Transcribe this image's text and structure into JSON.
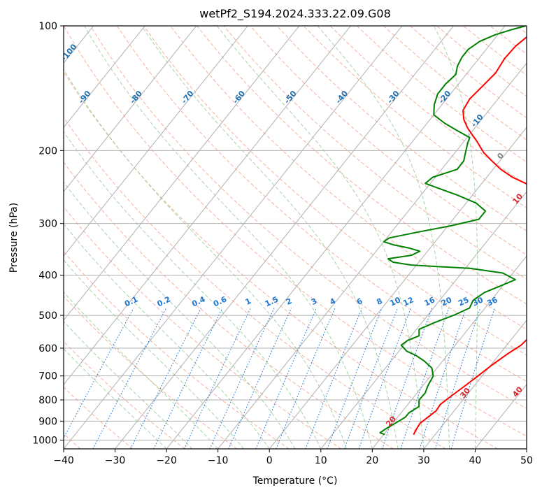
{
  "chart_data": {
    "type": "line",
    "subtype": "skew-T log-P diagram",
    "title": "wetPf2_S194.2024.333.22.09.G08",
    "xlabel": "Temperature (°C)",
    "ylabel": "Pressure (hPa)",
    "xlim": [
      -40,
      50
    ],
    "ylim": [
      1050,
      100
    ],
    "y_scale": "log",
    "x_ticks": [
      -40,
      -30,
      -20,
      -10,
      0,
      10,
      20,
      30,
      40,
      50
    ],
    "y_ticks": [
      100,
      200,
      300,
      400,
      500,
      600,
      700,
      800,
      900,
      1000
    ],
    "grid": true,
    "series": [
      {
        "role": "temperature",
        "color": "#ff0000",
        "points": [
          [
            25.8,
            970
          ],
          [
            25.5,
            940
          ],
          [
            25.3,
            910
          ],
          [
            25.9,
            880
          ],
          [
            26.5,
            850
          ],
          [
            26.3,
            820
          ],
          [
            27.2,
            780
          ],
          [
            28.2,
            740
          ],
          [
            29.2,
            700
          ],
          [
            30.2,
            660
          ],
          [
            31.5,
            620
          ],
          [
            32.8,
            590
          ],
          [
            33.2,
            560
          ],
          [
            33.6,
            530
          ],
          [
            33.0,
            500
          ],
          [
            33.0,
            470
          ],
          [
            33.3,
            440
          ],
          [
            34.0,
            410
          ],
          [
            35.6,
            385
          ],
          [
            36.2,
            370
          ],
          [
            35.5,
            355
          ],
          [
            34.5,
            335
          ],
          [
            32.6,
            315
          ],
          [
            30.0,
            300
          ],
          [
            26.0,
            285
          ],
          [
            21.0,
            272
          ],
          [
            16.5,
            260
          ],
          [
            12.5,
            250
          ],
          [
            8.5,
            240
          ],
          [
            5.0,
            232
          ],
          [
            1.5,
            222
          ],
          [
            -1.5,
            212
          ],
          [
            -4.5,
            202
          ],
          [
            -7.5,
            190
          ],
          [
            -9.5,
            183
          ],
          [
            -11.5,
            176
          ],
          [
            -13.5,
            168
          ],
          [
            -15.0,
            160
          ],
          [
            -15.5,
            150
          ],
          [
            -15.0,
            140
          ],
          [
            -14.5,
            130
          ],
          [
            -15.0,
            120
          ],
          [
            -14.8,
            112
          ],
          [
            -14.0,
            106
          ],
          [
            -13.0,
            100
          ]
        ]
      },
      {
        "role": "dewpoint",
        "color": "#008000",
        "points": [
          [
            20.2,
            970
          ],
          [
            19.0,
            960
          ],
          [
            19.5,
            940
          ],
          [
            20.5,
            910
          ],
          [
            21.5,
            880
          ],
          [
            21.5,
            860
          ],
          [
            22.5,
            830
          ],
          [
            21.5,
            800
          ],
          [
            21.6,
            770
          ],
          [
            21.0,
            740
          ],
          [
            20.5,
            700
          ],
          [
            19.0,
            670
          ],
          [
            16.5,
            645
          ],
          [
            14.0,
            625
          ],
          [
            11.5,
            610
          ],
          [
            9.5,
            590
          ],
          [
            10.0,
            575
          ],
          [
            11.5,
            560
          ],
          [
            10.5,
            540
          ],
          [
            12.5,
            520
          ],
          [
            15.0,
            500
          ],
          [
            17.0,
            480
          ],
          [
            16.5,
            460
          ],
          [
            17.5,
            440
          ],
          [
            19.5,
            425
          ],
          [
            21.5,
            410
          ],
          [
            18.0,
            395
          ],
          [
            11.0,
            385
          ],
          [
            -1.0,
            378
          ],
          [
            -5.0,
            372
          ],
          [
            -6.5,
            365
          ],
          [
            -2.5,
            358
          ],
          [
            -1.5,
            350
          ],
          [
            -4.0,
            344
          ],
          [
            -7.5,
            338
          ],
          [
            -10.0,
            332
          ],
          [
            -9.5,
            325
          ],
          [
            -5.0,
            315
          ],
          [
            0.5,
            304
          ],
          [
            5.0,
            293
          ],
          [
            5.0,
            280
          ],
          [
            2.0,
            268
          ],
          [
            -3.0,
            256
          ],
          [
            -8.0,
            246
          ],
          [
            -11.0,
            240
          ],
          [
            -10.5,
            232
          ],
          [
            -7.0,
            222
          ],
          [
            -7.0,
            212
          ],
          [
            -8.0,
            202
          ],
          [
            -9.0,
            192
          ],
          [
            -9.5,
            186
          ],
          [
            -12.5,
            180
          ],
          [
            -16.5,
            172
          ],
          [
            -20.0,
            164
          ],
          [
            -21.5,
            155
          ],
          [
            -22.5,
            146
          ],
          [
            -22.5,
            138
          ],
          [
            -22.0,
            131
          ],
          [
            -23.0,
            125
          ],
          [
            -23.5,
            119
          ],
          [
            -23.5,
            114
          ],
          [
            -22.5,
            109
          ],
          [
            -20.5,
            105
          ],
          [
            -18.0,
            102
          ],
          [
            -16.0,
            100
          ]
        ]
      }
    ],
    "overlays": {
      "dry_adiabats": {
        "style": "dashed",
        "color": "#f2a58e"
      },
      "moist_adiabats": {
        "style": "dashed",
        "color": "#9ccf9c"
      },
      "mixing_ratio_lines": {
        "style": "dotted",
        "color": "#1f77d4",
        "labels": [
          "0.1",
          "0.2",
          "0.4",
          "0.6",
          "1",
          "1.5",
          "2",
          "3",
          "4",
          "6",
          "8",
          "10",
          "12",
          "16",
          "20",
          "25",
          "30",
          "36"
        ],
        "values_g_per_kg": [
          0.1,
          0.2,
          0.4,
          0.6,
          1,
          1.5,
          2,
          3,
          4,
          6,
          8,
          10,
          12,
          16,
          20,
          25,
          30,
          36
        ]
      },
      "isotherm_labels_cold": {
        "color": "#1f6fb0",
        "labels": [
          "-100",
          "-90",
          "-80",
          "-70",
          "-60",
          "-50",
          "-40",
          "-30",
          "-20",
          "-10"
        ]
      },
      "isotherm_labels_warm": {
        "color": "#d62728",
        "labels": [
          "10",
          "20",
          "30",
          "40"
        ]
      },
      "zero_isotherm_label": {
        "color": "#808080",
        "label": "0"
      }
    }
  }
}
